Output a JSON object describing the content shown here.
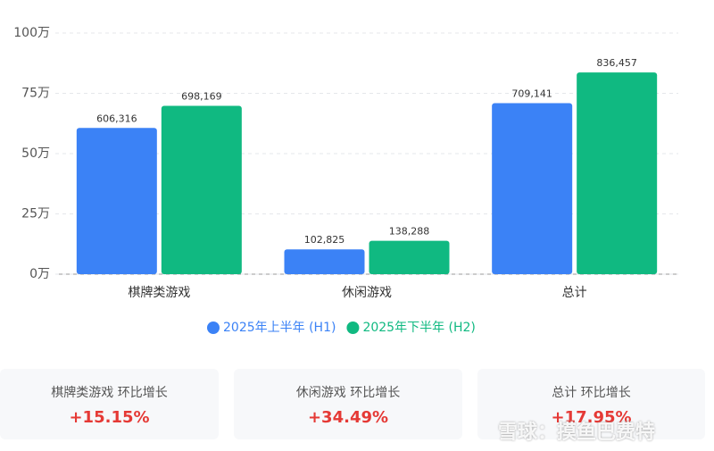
{
  "chart_data": {
    "type": "bar",
    "categories": [
      "棋牌类游戏",
      "休闲游戏",
      "总计"
    ],
    "series": [
      {
        "name": "2025年上半年 (H1)",
        "color": "#3b82f6",
        "values": [
          606316,
          102825,
          709141
        ],
        "value_labels": [
          "606,316",
          "102,825",
          "709,141"
        ]
      },
      {
        "name": "2025年下半年 (H2)",
        "color": "#10b981",
        "values": [
          698169,
          138288,
          836457
        ],
        "value_labels": [
          "698,169",
          "138,288",
          "836,457"
        ]
      }
    ],
    "ylim": [
      0,
      1000000
    ],
    "yticks": [
      {
        "value": 0,
        "label": "0万"
      },
      {
        "value": 250000,
        "label": "25万"
      },
      {
        "value": 500000,
        "label": "50万"
      },
      {
        "value": 750000,
        "label": "75万"
      },
      {
        "value": 1000000,
        "label": "100万"
      }
    ],
    "grid": true,
    "legend": "bottom"
  },
  "cards": [
    {
      "label": "棋牌类游戏 环比增长",
      "value": "+15.15%"
    },
    {
      "label": "休闲游戏 环比增长",
      "value": "+34.49%"
    },
    {
      "label": "总计 环比增长",
      "value": "+17.95%"
    }
  ],
  "watermark": "雪球：摸鱼巴费特"
}
